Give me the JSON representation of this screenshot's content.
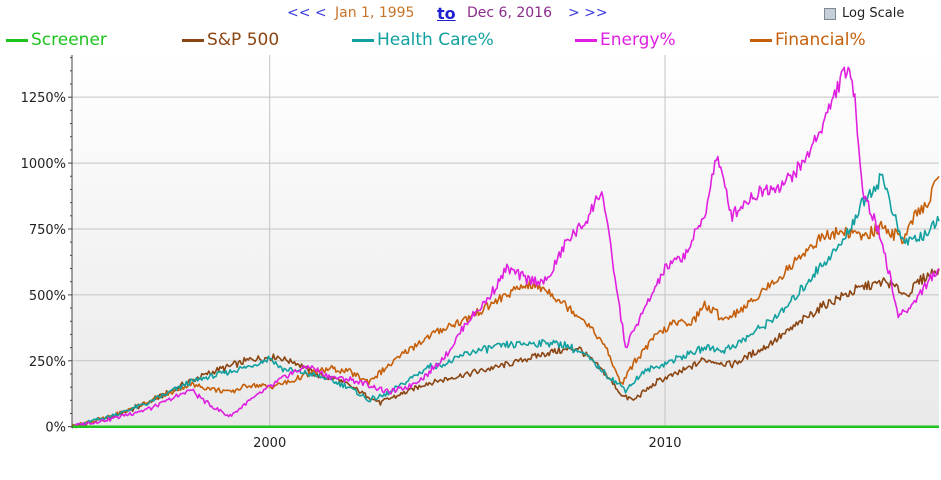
{
  "nav": {
    "prev": "<< <",
    "start_date": "Jan 1, 1995",
    "to": "to",
    "end_date": "Dec 6, 2016",
    "next": "> >>"
  },
  "log_scale": {
    "label": "Log Scale",
    "checked": false
  },
  "chart_data": {
    "type": "line",
    "x_ticks": [
      "2000",
      "2010"
    ],
    "y_ticks": [
      "0%",
      "250%",
      "500%",
      "750%",
      "1000%",
      "1250%"
    ],
    "xlim": [
      1995.0,
      2016.93
    ],
    "ylim": [
      -5,
      1410
    ],
    "grid": true,
    "legend_placement": "top",
    "series": [
      {
        "name": "Screener",
        "color": "#1ec31e",
        "x": [
          1995.0,
          2016.93
        ],
        "y": [
          0,
          0
        ]
      },
      {
        "name": "S&P 500",
        "color": "#8b4513",
        "x": [
          1995.0,
          1996.0,
          1997.0,
          1998.0,
          1998.6,
          1999.5,
          2000.2,
          2000.7,
          2001.2,
          2001.7,
          2002.2,
          2002.8,
          2003.5,
          2004.0,
          2005.0,
          2006.0,
          2007.0,
          2007.8,
          2008.5,
          2008.9,
          2009.2,
          2009.8,
          2010.5,
          2011.0,
          2011.7,
          2012.5,
          2013.0,
          2014.0,
          2015.0,
          2015.6,
          2016.1,
          2016.5,
          2016.93
        ],
        "y": [
          0,
          35,
          95,
          175,
          210,
          255,
          265,
          240,
          195,
          180,
          140,
          90,
          135,
          165,
          200,
          235,
          280,
          300,
          200,
          120,
          100,
          170,
          215,
          255,
          235,
          300,
          350,
          460,
          530,
          550,
          500,
          560,
          600
        ]
      },
      {
        "name": "Health Care%",
        "color": "#12a0a0",
        "x": [
          1995.0,
          1996.0,
          1997.0,
          1998.0,
          1999.0,
          1999.5,
          2000.0,
          2000.3,
          2001.0,
          2001.5,
          2002.0,
          2002.5,
          2003.0,
          2003.5,
          2004.0,
          2004.5,
          2005.0,
          2006.0,
          2007.0,
          2007.5,
          2008.0,
          2008.5,
          2009.0,
          2009.5,
          2010.0,
          2011.0,
          2011.5,
          2012.0,
          2013.0,
          2014.0,
          2014.5,
          2015.0,
          2015.5,
          2015.8,
          2016.0,
          2016.5,
          2016.93
        ],
        "y": [
          0,
          40,
          95,
          170,
          210,
          230,
          260,
          220,
          200,
          180,
          150,
          100,
          125,
          175,
          225,
          240,
          280,
          310,
          320,
          310,
          270,
          200,
          140,
          210,
          240,
          300,
          290,
          330,
          440,
          620,
          700,
          850,
          950,
          800,
          700,
          720,
          780
        ]
      },
      {
        "name": "Energy%",
        "color": "#e020e0",
        "x": [
          1995.0,
          1996.0,
          1997.0,
          1998.0,
          1998.5,
          1999.0,
          1999.5,
          2000.0,
          2000.5,
          2001.0,
          2001.5,
          2002.0,
          2002.5,
          2003.0,
          2003.5,
          2004.0,
          2004.5,
          2005.0,
          2005.5,
          2006.0,
          2006.5,
          2007.0,
          2007.5,
          2008.0,
          2008.4,
          2008.7,
          2009.0,
          2009.5,
          2010.0,
          2010.5,
          2011.0,
          2011.3,
          2011.7,
          2012.0,
          2012.5,
          2013.0,
          2013.5,
          2014.0,
          2014.4,
          2014.6,
          2014.8,
          2015.0,
          2015.5,
          2015.9,
          2016.2,
          2016.5,
          2016.93
        ],
        "y": [
          0,
          30,
          70,
          140,
          80,
          40,
          100,
          150,
          200,
          230,
          190,
          180,
          160,
          130,
          150,
          200,
          280,
          400,
          480,
          600,
          560,
          550,
          700,
          780,
          900,
          600,
          300,
          450,
          600,
          650,
          800,
          1030,
          800,
          850,
          900,
          920,
          1000,
          1150,
          1300,
          1360,
          1250,
          900,
          700,
          420,
          450,
          520,
          600
        ]
      },
      {
        "name": "Financial%",
        "color": "#c65f0a",
        "x": [
          1995.0,
          1996.0,
          1997.0,
          1998.0,
          1998.5,
          1999.0,
          1999.5,
          2000.0,
          2000.5,
          2001.0,
          2001.5,
          2002.0,
          2002.5,
          2003.0,
          2003.5,
          2004.0,
          2004.5,
          2005.0,
          2006.0,
          2006.5,
          2007.0,
          2007.5,
          2008.0,
          2008.5,
          2008.9,
          2009.2,
          2009.8,
          2010.2,
          2010.7,
          2011.0,
          2011.5,
          2012.0,
          2012.5,
          2013.0,
          2013.5,
          2014.0,
          2014.5,
          2015.0,
          2015.5,
          2016.0,
          2016.3,
          2016.6,
          2016.93
        ],
        "y": [
          0,
          40,
          100,
          160,
          145,
          130,
          160,
          150,
          170,
          200,
          220,
          210,
          170,
          230,
          290,
          340,
          380,
          410,
          500,
          540,
          520,
          460,
          400,
          300,
          160,
          240,
          350,
          390,
          400,
          460,
          410,
          450,
          520,
          580,
          660,
          720,
          740,
          720,
          760,
          710,
          790,
          840,
          950
        ]
      }
    ]
  }
}
